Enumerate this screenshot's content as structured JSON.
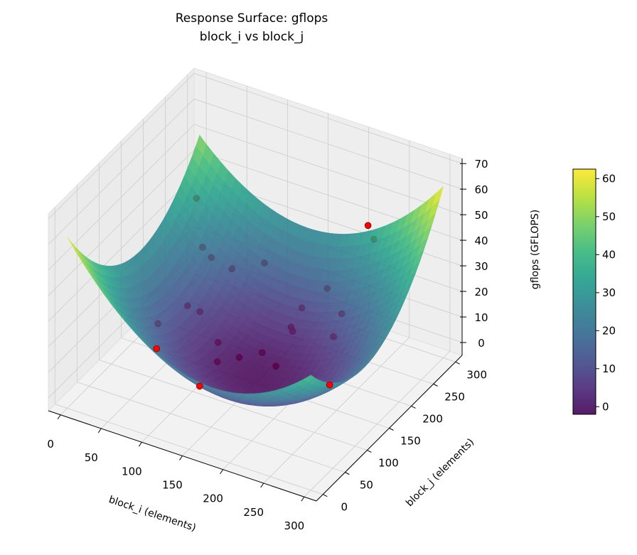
{
  "chart_data": {
    "type": "surface3d",
    "title": "Response Surface: gflops",
    "subtitle": "block_i vs block_j",
    "xlabel": "block_i (elements)",
    "ylabel": "block_j (elements)",
    "zlabel": "gflops (GFLOPS)",
    "xlim": [
      -15,
      315
    ],
    "ylim": [
      -15,
      315
    ],
    "zlim": [
      -5,
      72
    ],
    "xticks": [
      0,
      50,
      100,
      150,
      200,
      250,
      300
    ],
    "yticks": [
      0,
      50,
      100,
      150,
      200,
      250,
      300
    ],
    "zticks": [
      0,
      10,
      20,
      30,
      40,
      50,
      60,
      70
    ],
    "colorbar": {
      "min": -2,
      "max": 62.5,
      "ticks": [
        0,
        10,
        20,
        30,
        40,
        50,
        60
      ],
      "colormap": "viridis"
    },
    "surface_model": {
      "domain": [
        0,
        300
      ],
      "center": 150,
      "scale": 150,
      "c0": -2,
      "a_uu": 27.75,
      "b_vv": 27.75,
      "d_uv": 8.5,
      "e_u": -2.5,
      "f_v": 2.5
    },
    "point_color": "#ff0000",
    "points": [
      {
        "x": 15,
        "y": 265,
        "z": 33,
        "above_surface": false
      },
      {
        "x": 40,
        "y": 233,
        "z": 22,
        "above_surface": false
      },
      {
        "x": 48,
        "y": 238,
        "z": 18,
        "above_surface": false
      },
      {
        "x": 68,
        "y": 248,
        "z": 14,
        "above_surface": false
      },
      {
        "x": 95,
        "y": 272,
        "z": 15,
        "above_surface": false
      },
      {
        "x": 188,
        "y": 243,
        "z": 20,
        "above_surface": false
      },
      {
        "x": 221,
        "y": 288,
        "z": 35,
        "above_surface": false
      },
      {
        "x": 47,
        "y": 186,
        "z": 8,
        "above_surface": false
      },
      {
        "x": 57,
        "y": 196,
        "z": 5,
        "above_surface": false
      },
      {
        "x": 41,
        "y": 130,
        "z": 10,
        "above_surface": false
      },
      {
        "x": 159,
        "y": 239,
        "z": 10,
        "above_surface": false
      },
      {
        "x": 213,
        "y": 230,
        "z": 15,
        "above_surface": false
      },
      {
        "x": 155,
        "y": 222,
        "z": 5,
        "above_surface": false
      },
      {
        "x": 158,
        "y": 220,
        "z": 4,
        "above_surface": false
      },
      {
        "x": 210,
        "y": 217,
        "z": 8,
        "above_surface": false
      },
      {
        "x": 90,
        "y": 176,
        "z": 0,
        "above_surface": false
      },
      {
        "x": 121,
        "y": 167,
        "z": -1,
        "above_surface": false
      },
      {
        "x": 140,
        "y": 184,
        "z": 0,
        "above_surface": false
      },
      {
        "x": 105,
        "y": 147,
        "z": -1,
        "above_surface": false
      },
      {
        "x": 163,
        "y": 173,
        "z": -1,
        "above_surface": false
      },
      {
        "x": 210,
        "y": 295,
        "z": 38,
        "above_surface": true
      },
      {
        "x": 84,
        "y": 48,
        "z": 19,
        "above_surface": true
      },
      {
        "x": 137,
        "y": 48,
        "z": 10,
        "above_surface": true
      },
      {
        "x": 265,
        "y": 107,
        "z": 14,
        "above_surface": true
      }
    ]
  }
}
